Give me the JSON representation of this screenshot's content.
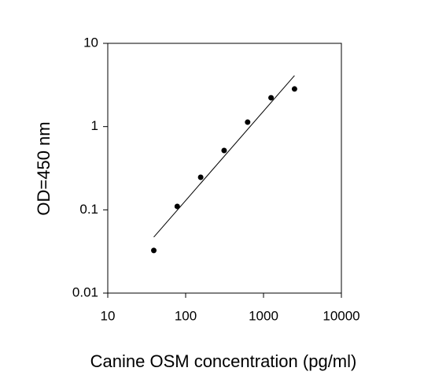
{
  "chart_data": {
    "type": "scatter",
    "xlabel": "Canine OSM concentration (pg/ml)",
    "ylabel": "OD=450 nm",
    "x": [
      39,
      78,
      156,
      312,
      625,
      1250,
      2500
    ],
    "values": [
      0.0325,
      0.11,
      0.246,
      0.516,
      1.13,
      2.22,
      2.83
    ],
    "color": "#000000",
    "fit": {
      "x": [
        39,
        2500
      ],
      "values": [
        0.047,
        4.1
      ],
      "color": "#000000"
    },
    "xscale": "log",
    "yscale": "log",
    "xlim": [
      10,
      10000
    ],
    "xticks": [
      10,
      100,
      1000,
      10000
    ],
    "ylim": [
      0.01,
      10
    ],
    "yticks": [
      0.01,
      0.1,
      1,
      10
    ],
    "grid": false
  }
}
